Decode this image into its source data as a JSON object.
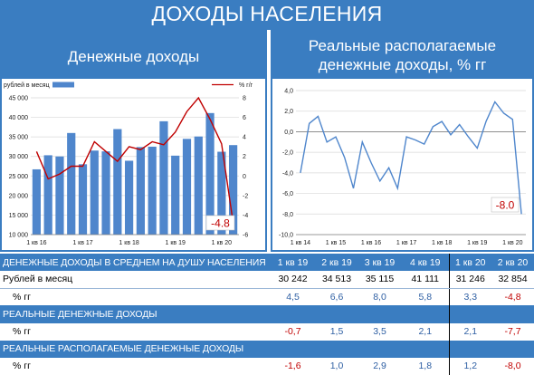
{
  "header": {
    "title": "ДОХОДЫ НАСЕЛЕНИЯ"
  },
  "left_panel": {
    "title": "Денежные доходы"
  },
  "right_panel": {
    "title_line1": "Реальные располагаемые",
    "title_line2": "денежные доходы, % гг"
  },
  "colors": {
    "accent": "#3a7dc1",
    "bar": "#4f86cc",
    "red_line": "#c00000",
    "negative": "#c00000",
    "positive": "#2e5fa3"
  },
  "chart_data": [
    {
      "type": "bar",
      "subtype": "bar-with-line-secondary-axis",
      "legend": {
        "placement": "top",
        "bar_label": "рублей в месяц",
        "line_label": "% г/г"
      },
      "ylim": [
        10000,
        45000
      ],
      "yticks": [
        "45 000",
        "40 000",
        "35 000",
        "30 000",
        "25 000",
        "20 000",
        "15 000",
        "10 000"
      ],
      "y2lim": [
        -6,
        8
      ],
      "y2ticks": [
        "8",
        "6",
        "4",
        "2",
        "0",
        "-2",
        "-4",
        "-6"
      ],
      "categories": [
        "1 кв 16",
        "2 кв 16",
        "3 кв 16",
        "4 кв 16",
        "1 кв 17",
        "2 кв 17",
        "3 кв 17",
        "4 кв 17",
        "1 кв 18",
        "2 кв 18",
        "3 кв 18",
        "4 кв 18",
        "1 кв 19",
        "2 кв 19",
        "3 кв 19",
        "4 кв 19",
        "1 кв 20",
        "2 кв 20"
      ],
      "xtick_labels": [
        "1 кв 16",
        "1 кв 17",
        "1 кв 18",
        "1 кв 19",
        "1 кв 20"
      ],
      "xtick_index": [
        0,
        4,
        8,
        12,
        16
      ],
      "series": [
        {
          "name": "рублей в месяц",
          "kind": "bar",
          "values": [
            26700,
            30300,
            30000,
            36000,
            28000,
            31500,
            31300,
            37000,
            28900,
            32400,
            32500,
            39000,
            30200,
            34500,
            35100,
            41100,
            31200,
            32900
          ]
        },
        {
          "name": "% г/г",
          "kind": "line",
          "values": [
            2.5,
            -0.3,
            0.2,
            1.0,
            1.0,
            3.5,
            2.5,
            1.5,
            3.0,
            2.7,
            3.5,
            3.2,
            4.5,
            6.6,
            8.0,
            5.8,
            3.3,
            -4.8
          ]
        }
      ],
      "last_value_label": "-4.8",
      "grid": true
    },
    {
      "type": "line",
      "ylim": [
        -10,
        4
      ],
      "yticks": [
        "4,0",
        "2,0",
        "0,0",
        "-2,0",
        "-4,0",
        "-6,0",
        "-8,0",
        "-10,0"
      ],
      "x": [
        "1 кв 14",
        "2 кв 14",
        "3 кв 14",
        "4 кв 14",
        "1 кв 15",
        "2 кв 15",
        "3 кв 15",
        "4 кв 15",
        "1 кв 16",
        "2 кв 16",
        "3 кв 16",
        "4 кв 16",
        "1 кв 17",
        "2 кв 17",
        "3 кв 17",
        "4 кв 17",
        "1 кв 18",
        "2 кв 18",
        "3 кв 18",
        "4 кв 18",
        "1 кв 19",
        "2 кв 19",
        "3 кв 19",
        "4 кв 19",
        "1 кв 20",
        "2 кв 20"
      ],
      "xtick_labels": [
        "1 кв 14",
        "1 кв 15",
        "1 кв 16",
        "1 кв 17",
        "1 кв 18",
        "1 кв 19",
        "1 кв 20"
      ],
      "xtick_index": [
        0,
        4,
        8,
        12,
        16,
        20,
        24
      ],
      "series": [
        {
          "values": [
            -4.0,
            0.8,
            1.5,
            -1.0,
            -0.5,
            -2.5,
            -5.5,
            -1.0,
            -3.0,
            -4.8,
            -3.5,
            -5.5,
            -0.5,
            -0.8,
            -1.2,
            0.5,
            1.0,
            -0.3,
            0.7,
            -0.5,
            -1.6,
            1.0,
            2.9,
            1.8,
            1.2,
            -8.0
          ]
        }
      ],
      "last_value_label": "-8.0",
      "grid": true
    }
  ],
  "table": {
    "columns": [
      "1 кв 19",
      "2 кв 19",
      "3 кв 19",
      "4 кв 19",
      "1 кв 20",
      "2 кв 20"
    ],
    "section1": {
      "title": "ДЕНЕЖНЫЕ ДОХОДЫ В СРЕДНЕМ НА ДУШУ НАСЕЛЕНИЯ"
    },
    "rub_row": {
      "label": "Рублей в месяц",
      "values": [
        "30 242",
        "34 513",
        "35 115",
        "41 111",
        "31 246",
        "32 854"
      ]
    },
    "pct_row1": {
      "label": "% гг",
      "values": [
        "4,5",
        "6,6",
        "8,0",
        "5,8",
        "3,3",
        "-4,8"
      ]
    },
    "section2": {
      "title": "РЕАЛЬНЫЕ ДЕНЕЖНЫЕ ДОХОДЫ"
    },
    "pct_row2": {
      "label": "% гг",
      "values": [
        "-0,7",
        "1,5",
        "3,5",
        "2,1",
        "2,1",
        "-7,7"
      ]
    },
    "section3": {
      "title": "РЕАЛЬНЫЕ РАСПОЛАГАЕМЫЕ ДЕНЕЖНЫЕ ДОХОДЫ"
    },
    "pct_row3": {
      "label": "% гг",
      "values": [
        "-1,6",
        "1,0",
        "2,9",
        "1,8",
        "1,2",
        "-8,0"
      ]
    }
  }
}
